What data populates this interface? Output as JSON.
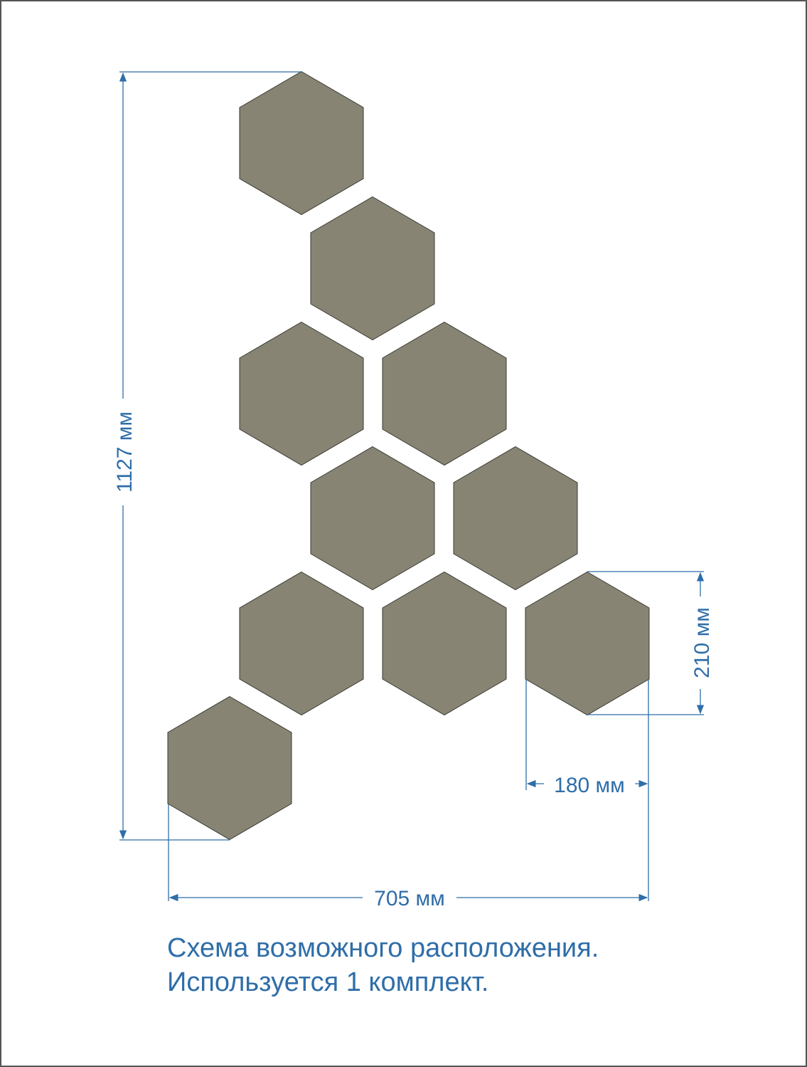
{
  "colors": {
    "hexagon_fill": "#878474",
    "dimension": "#2f6ea8",
    "border": "#555555"
  },
  "dimensions": {
    "total_height": "1127 мм",
    "total_width": "705 мм",
    "hex_height": "210 мм",
    "hex_width": "180 мм"
  },
  "caption": {
    "line1": "Схема возможного расположения.",
    "line2": "Используется 1 комплект."
  },
  "hexagon_count": 10
}
